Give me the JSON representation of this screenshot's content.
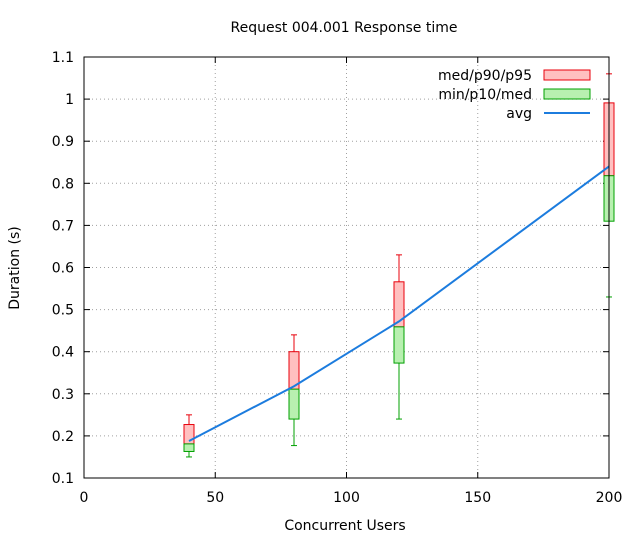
{
  "chart_data": {
    "type": "box",
    "title": "Request 004.001 Response time",
    "xlabel": "Concurrent Users",
    "ylabel": "Duration (s)",
    "xlim": [
      0,
      200
    ],
    "ylim": [
      0.1,
      1.1
    ],
    "xticks": [
      0,
      50,
      100,
      150,
      200
    ],
    "yticks": [
      0.1,
      0.2,
      0.3,
      0.4,
      0.5,
      0.6,
      0.7,
      0.8,
      0.9,
      1,
      1.1
    ],
    "grid": true,
    "legend_position": "top-right",
    "x": [
      40,
      80,
      120,
      200
    ],
    "series": [
      {
        "name": "med/p90/p95",
        "color": "#e8000b",
        "fill": "#ffc0c0",
        "low": [
          0.181,
          0.311,
          0.459,
          0.818
        ],
        "high": [
          0.227,
          0.4,
          0.566,
          0.991
        ],
        "whisker": [
          0.25,
          0.44,
          0.63,
          1.06
        ]
      },
      {
        "name": "min/p10/med",
        "color": "#00a000",
        "fill": "#b8f0b0",
        "low": [
          0.163,
          0.24,
          0.373,
          0.71
        ],
        "high": [
          0.181,
          0.311,
          0.459,
          0.818
        ],
        "whisker": [
          0.15,
          0.177,
          0.24,
          0.53
        ]
      },
      {
        "name": "avg",
        "color": "#1c7cde",
        "values": [
          0.188,
          0.318,
          0.472,
          0.84
        ]
      }
    ]
  }
}
